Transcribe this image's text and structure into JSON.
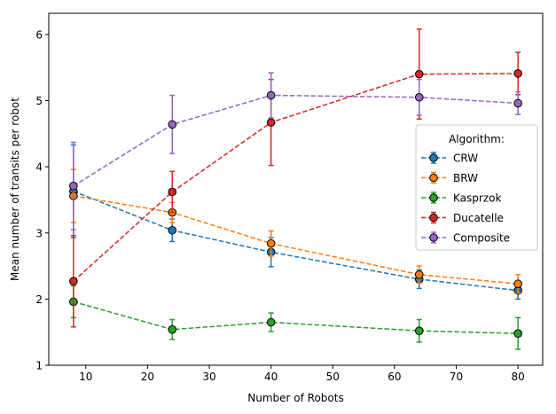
{
  "chart_data": {
    "type": "line",
    "xlabel": "Number of Robots",
    "ylabel": "Mean number of transits per robot",
    "xlim": [
      4,
      84
    ],
    "ylim": [
      1,
      6.32
    ],
    "xticks": [
      10,
      20,
      30,
      40,
      50,
      60,
      70,
      80
    ],
    "yticks": [
      1,
      2,
      3,
      4,
      5,
      6
    ],
    "x": [
      8,
      24,
      40,
      64,
      80
    ],
    "legend": {
      "title": "Algorithm:",
      "position": "right"
    },
    "grid": false,
    "series": [
      {
        "name": "CRW",
        "color": "#1f77b4",
        "values": [
          3.63,
          3.04,
          2.71,
          2.3,
          2.13
        ],
        "err": [
          0.7,
          0.17,
          0.22,
          0.14,
          0.13
        ]
      },
      {
        "name": "BRW",
        "color": "#ff7f0e",
        "values": [
          3.56,
          3.31,
          2.84,
          2.37,
          2.23
        ],
        "err": [
          0.4,
          0.15,
          0.19,
          0.13,
          0.14
        ]
      },
      {
        "name": "Kasprzok",
        "color": "#2ca02c",
        "values": [
          1.96,
          1.54,
          1.65,
          1.52,
          1.48
        ],
        "err": [
          0.24,
          0.15,
          0.14,
          0.17,
          0.24
        ]
      },
      {
        "name": "Ducatelle",
        "color": "#d62728",
        "values": [
          2.27,
          3.62,
          4.67,
          5.4,
          5.41
        ],
        "err": [
          0.69,
          0.31,
          0.65,
          0.68,
          0.32
        ]
      },
      {
        "name": "Composite",
        "color": "#9467bd",
        "values": [
          3.71,
          4.64,
          5.08,
          5.05,
          4.96
        ],
        "err": [
          0.66,
          0.44,
          0.34,
          0.27,
          0.17
        ]
      }
    ]
  }
}
